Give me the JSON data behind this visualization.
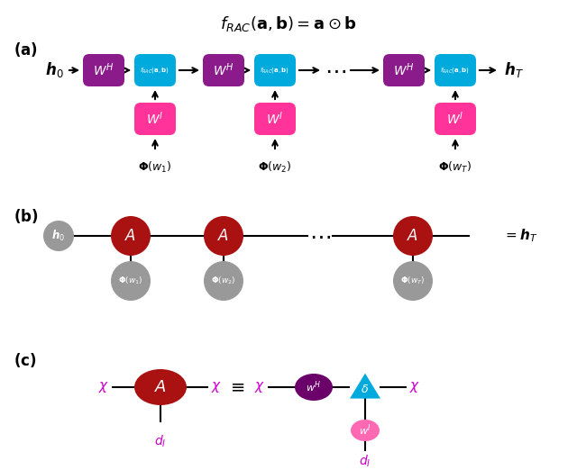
{
  "title": "$f_{RAC}(\\mathbf{a}, \\mathbf{b}) = \\mathbf{a} \\odot \\mathbf{b}$",
  "color_WH_box": "#8B1A8B",
  "color_frac_box": "#00AADD",
  "color_WI_box": "#FF3399",
  "color_A_circle": "#AA1111",
  "color_h0_circle": "#999999",
  "color_phi_circle": "#999999",
  "color_WH_ellipse": "#6B006B",
  "color_delta_triangle": "#00AADD",
  "color_WI_ellipse": "#FF69B4",
  "color_magenta_text": "#CC00CC",
  "white": "#FFFFFF",
  "black": "#000000",
  "fig_w": 6.4,
  "fig_h": 5.22,
  "dpi": 100
}
